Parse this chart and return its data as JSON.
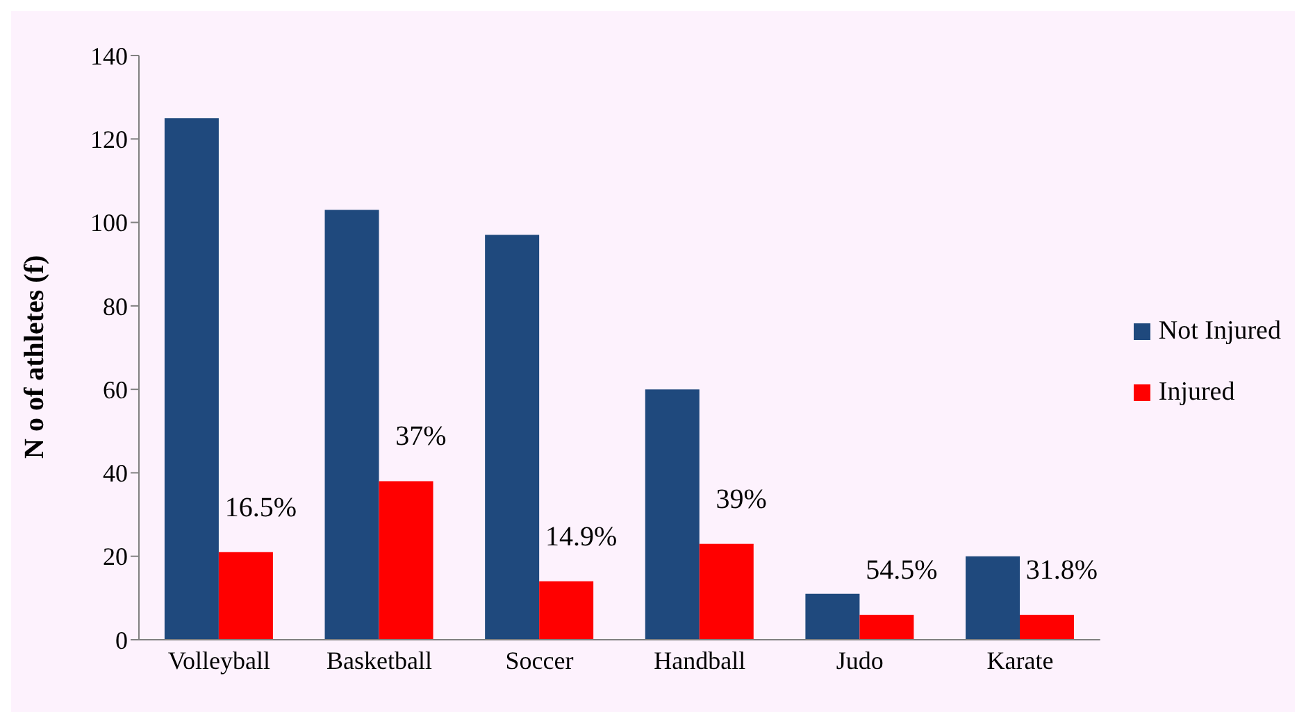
{
  "chart_data": {
    "type": "bar",
    "ylabel": "N o  of  athletes (f)",
    "categories": [
      "Volleyball",
      "Basketball",
      "Soccer",
      "Handball",
      "Judo",
      "Karate"
    ],
    "series": [
      {
        "name": "Not Injured",
        "color": "#1f497d",
        "values": [
          125,
          103,
          97,
          60,
          11,
          20
        ]
      },
      {
        "name": "Injured",
        "color": "#ff0000",
        "values": [
          21,
          38,
          14,
          23,
          6,
          6
        ]
      }
    ],
    "annotations": [
      {
        "text": "16.5%",
        "x": "Volleyball",
        "y": 21
      },
      {
        "text": "37%",
        "x": "Basketball",
        "y": 38
      },
      {
        "text": "14.9%",
        "x": "Soccer",
        "y": 14
      },
      {
        "text": "39%",
        "x": "Handball",
        "y": 23
      },
      {
        "text": "54.5%",
        "x": "Judo",
        "y": 6
      },
      {
        "text": "31.8%",
        "x": "Karate",
        "y": 6
      }
    ],
    "ylim": [
      0,
      140
    ],
    "yticks": [
      0,
      20,
      40,
      60,
      80,
      100,
      120,
      140
    ],
    "grid": false,
    "legend": "right"
  }
}
